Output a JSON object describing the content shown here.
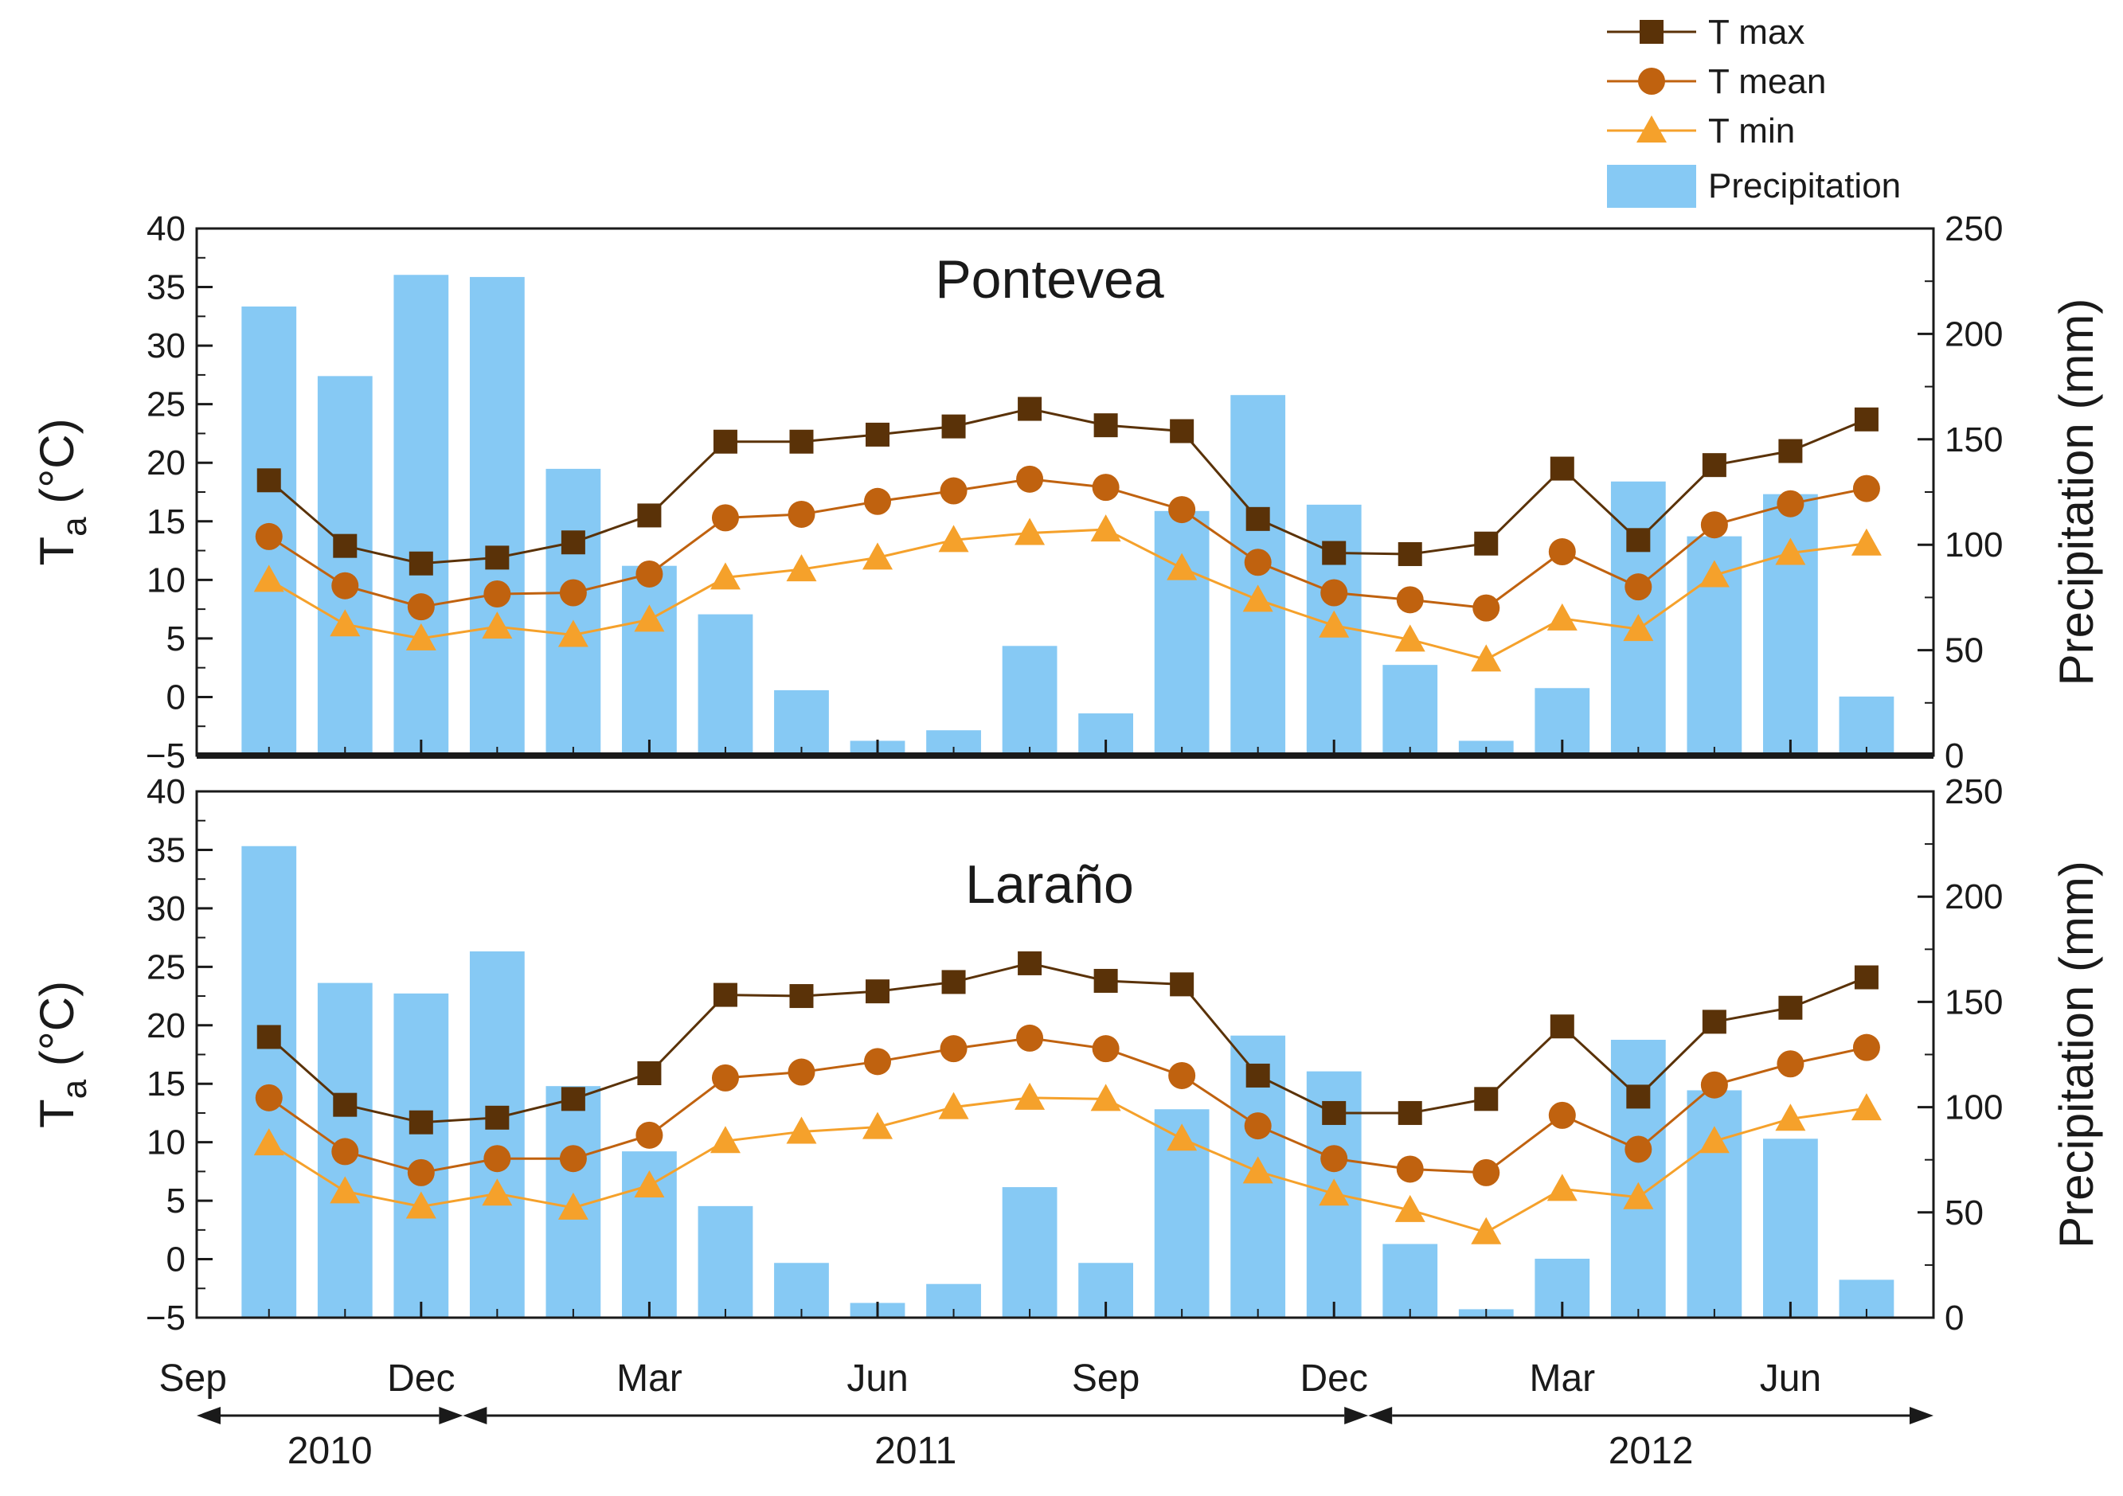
{
  "legend": {
    "items": [
      {
        "label": "T max",
        "color": "#5a3208",
        "marker": "square"
      },
      {
        "label": "T mean",
        "color": "#c0620f",
        "marker": "circle"
      },
      {
        "label": "T min",
        "color": "#f5a12b",
        "marker": "triangle"
      },
      {
        "label": "Precipitation",
        "color": "#86c9f4",
        "marker": "bar"
      }
    ]
  },
  "x_axis": {
    "tick_labels": [
      "Sep",
      "Dec",
      "Mar",
      "Jun",
      "Sep",
      "Dec",
      "Mar",
      "Jun"
    ],
    "years": [
      "2010",
      "2011",
      "2012"
    ]
  },
  "chart_data": [
    {
      "type": "bar+line",
      "title": "Pontevea",
      "ylabel_left": "T",
      "ylabel_left_sub": "a",
      "ylabel_left_unit": " (°C)",
      "ylabel_right": "Precipitation (mm)",
      "ylim_left": [
        -5,
        40
      ],
      "ylim_right": [
        0,
        250
      ],
      "yticks_left": [
        -5,
        0,
        5,
        10,
        15,
        20,
        25,
        30,
        35,
        40
      ],
      "yticks_right": [
        0,
        50,
        100,
        150,
        200,
        250
      ],
      "months": [
        "Oct 2010",
        "Nov 2010",
        "Dec 2010",
        "Jan 2011",
        "Feb 2011",
        "Mar 2011",
        "Apr 2011",
        "May 2011",
        "Jun 2011",
        "Jul 2011",
        "Aug 2011",
        "Sep 2011",
        "Oct 2011",
        "Nov 2011",
        "Dec 2011",
        "Jan 2012",
        "Feb 2012",
        "Mar 2012",
        "Apr 2012",
        "May 2012",
        "Jun 2012",
        "Jul 2012"
      ],
      "series": [
        {
          "name": "T max",
          "values": [
            18.5,
            12.9,
            11.4,
            11.9,
            13.2,
            15.5,
            21.8,
            21.8,
            22.4,
            23.1,
            24.6,
            23.2,
            22.7,
            15.2,
            12.3,
            12.2,
            13.1,
            19.5,
            13.4,
            19.8,
            21.0,
            23.7
          ]
        },
        {
          "name": "T mean",
          "values": [
            13.7,
            9.5,
            7.7,
            8.8,
            8.9,
            10.5,
            15.3,
            15.6,
            16.7,
            17.6,
            18.6,
            17.9,
            16.0,
            11.5,
            8.9,
            8.3,
            7.6,
            12.4,
            9.4,
            14.7,
            16.5,
            17.8
          ]
        },
        {
          "name": "T min",
          "values": [
            10.0,
            6.2,
            5.0,
            6.0,
            5.3,
            6.6,
            10.2,
            10.9,
            11.9,
            13.4,
            14.0,
            14.3,
            11.0,
            8.3,
            6.1,
            4.9,
            3.2,
            6.7,
            5.8,
            10.4,
            12.3,
            13.1
          ]
        },
        {
          "name": "Precipitation",
          "values": [
            213,
            180,
            228,
            227,
            136,
            90,
            67,
            31,
            7,
            12,
            52,
            20,
            116,
            171,
            119,
            43,
            7,
            32,
            130,
            104,
            124,
            28
          ]
        }
      ]
    },
    {
      "type": "bar+line",
      "title": "Laraño",
      "ylabel_left": "T",
      "ylabel_left_sub": "a",
      "ylabel_left_unit": " (°C)",
      "ylabel_right": "Precipitation (mm)",
      "ylim_left": [
        -5,
        40
      ],
      "ylim_right": [
        0,
        250
      ],
      "yticks_left": [
        -5,
        0,
        5,
        10,
        15,
        20,
        25,
        30,
        35,
        40
      ],
      "yticks_right": [
        0,
        50,
        100,
        150,
        200,
        250
      ],
      "months": [
        "Oct 2010",
        "Nov 2010",
        "Dec 2010",
        "Jan 2011",
        "Feb 2011",
        "Mar 2011",
        "Apr 2011",
        "May 2011",
        "Jun 2011",
        "Jul 2011",
        "Aug 2011",
        "Sep 2011",
        "Oct 2011",
        "Nov 2011",
        "Dec 2011",
        "Jan 2012",
        "Feb 2012",
        "Mar 2012",
        "Apr 2012",
        "May 2012",
        "Jun 2012",
        "Jul 2012"
      ],
      "series": [
        {
          "name": "T max",
          "values": [
            19.0,
            13.2,
            11.7,
            12.1,
            13.7,
            15.9,
            22.6,
            22.5,
            22.9,
            23.7,
            25.3,
            23.8,
            23.5,
            15.7,
            12.5,
            12.5,
            13.7,
            19.9,
            13.9,
            20.3,
            21.5,
            24.1
          ]
        },
        {
          "name": "T mean",
          "values": [
            13.8,
            9.2,
            7.4,
            8.6,
            8.6,
            10.6,
            15.5,
            16.0,
            16.9,
            18.0,
            18.9,
            18.0,
            15.7,
            11.4,
            8.6,
            7.7,
            7.4,
            12.3,
            9.4,
            14.9,
            16.7,
            18.1
          ]
        },
        {
          "name": "T min",
          "values": [
            9.9,
            5.8,
            4.5,
            5.6,
            4.4,
            6.3,
            10.1,
            10.9,
            11.3,
            13.0,
            13.8,
            13.7,
            10.3,
            7.5,
            5.6,
            4.2,
            2.3,
            6.0,
            5.3,
            10.1,
            12.0,
            12.9
          ]
        },
        {
          "name": "Precipitation",
          "values": [
            224,
            159,
            154,
            174,
            110,
            79,
            53,
            26,
            7,
            16,
            62,
            26,
            99,
            134,
            117,
            35,
            4,
            28,
            132,
            108,
            85,
            18
          ]
        }
      ]
    }
  ]
}
